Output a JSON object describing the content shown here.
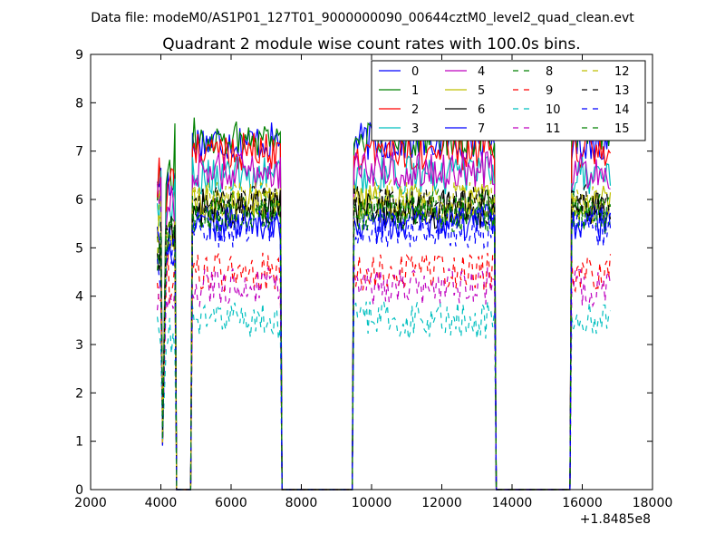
{
  "header": {
    "file_line": "Data file: modeM0/AS1P01_127T01_9000000090_00644cztM0_level2_quad_clean.evt"
  },
  "chart_data": {
    "type": "line",
    "title": "Quadrant 2 module wise count rates with 100.0s bins.",
    "xlabel": "",
    "ylabel": "",
    "x_offset_label": "+1.8485e8",
    "xlim": [
      2000,
      18000
    ],
    "ylim": [
      0,
      9
    ],
    "x_ticks": [
      2000,
      4000,
      6000,
      8000,
      10000,
      12000,
      14000,
      16000,
      18000
    ],
    "y_ticks": [
      0,
      1,
      2,
      3,
      4,
      5,
      6,
      7,
      8,
      9
    ],
    "x_tick_labels": [
      "2000",
      "4000",
      "6000",
      "8000",
      "10000",
      "12000",
      "14000",
      "16000",
      "18000"
    ],
    "y_tick_labels": [
      "0",
      "1",
      "2",
      "3",
      "4",
      "5",
      "6",
      "7",
      "8",
      "9"
    ],
    "grid": false,
    "legend_position": "top-right",
    "legend_columns": 4,
    "segments": [
      [
        3900,
        4000
      ],
      [
        4150,
        4400
      ],
      [
        4900,
        7400
      ],
      [
        9500,
        13500
      ],
      [
        15700,
        16800
      ]
    ],
    "series": [
      {
        "name": "0",
        "color": "#0000ff",
        "dash": "solid",
        "level": 7.2
      },
      {
        "name": "1",
        "color": "#008000",
        "dash": "solid",
        "level": 7.3
      },
      {
        "name": "2",
        "color": "#ff0000",
        "dash": "solid",
        "level": 7.0
      },
      {
        "name": "3",
        "color": "#00bfbf",
        "dash": "solid",
        "level": 6.5
      },
      {
        "name": "4",
        "color": "#bf00bf",
        "dash": "solid",
        "level": 6.6
      },
      {
        "name": "5",
        "color": "#bfbf00",
        "dash": "solid",
        "level": 5.9
      },
      {
        "name": "6",
        "color": "#000000",
        "dash": "solid",
        "level": 5.8
      },
      {
        "name": "7",
        "color": "#0000ff",
        "dash": "solid",
        "level": 5.5
      },
      {
        "name": "8",
        "color": "#008000",
        "dash": "dashed",
        "level": 5.8
      },
      {
        "name": "9",
        "color": "#ff0000",
        "dash": "dashed",
        "level": 4.5
      },
      {
        "name": "10",
        "color": "#00bfbf",
        "dash": "dashed",
        "level": 3.5
      },
      {
        "name": "11",
        "color": "#bf00bf",
        "dash": "dashed",
        "level": 4.2
      },
      {
        "name": "12",
        "color": "#bfbf00",
        "dash": "dashed",
        "level": 6.0
      },
      {
        "name": "13",
        "color": "#000000",
        "dash": "dashed",
        "level": 5.9
      },
      {
        "name": "14",
        "color": "#0000ff",
        "dash": "dashed",
        "level": 5.4
      },
      {
        "name": "15",
        "color": "#008000",
        "dash": "dashed",
        "level": 5.7
      }
    ]
  }
}
